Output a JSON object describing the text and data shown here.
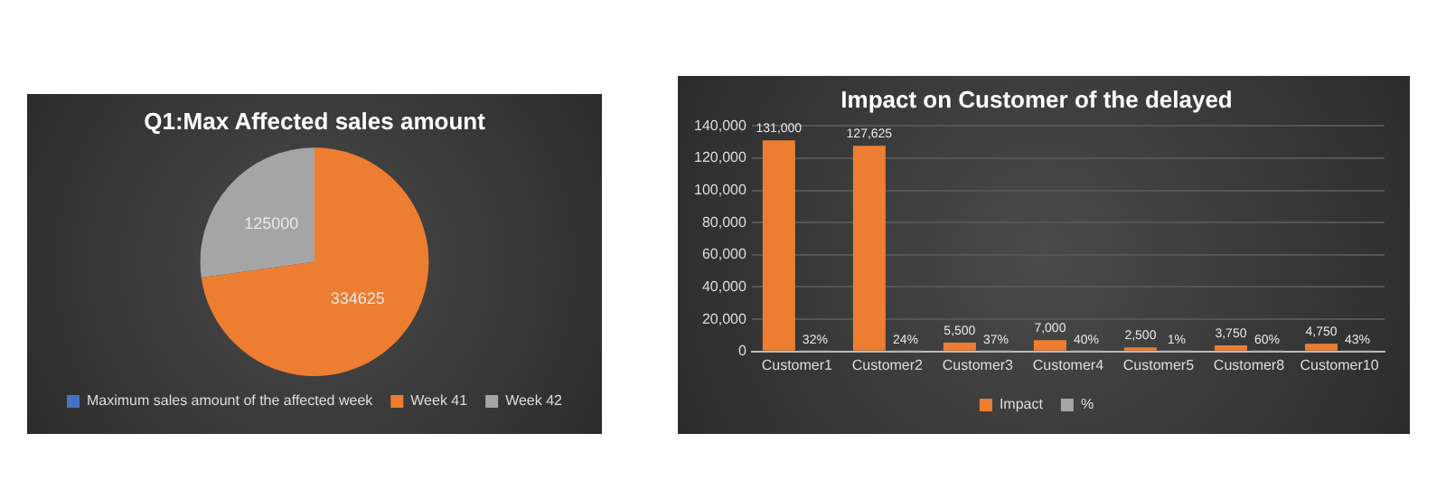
{
  "chart_data": [
    {
      "type": "pie",
      "title": "Q1:Max Affected sales amount",
      "categories": [
        "Maximum sales amount of the affected week",
        "Week 41",
        "Week 42"
      ],
      "values": [
        0,
        334625,
        125000
      ],
      "value_labels": [
        null,
        "334625",
        "125000"
      ],
      "colors": [
        "#4472c4",
        "#ed7d31",
        "#a5a5a5"
      ],
      "legend": "bottom"
    },
    {
      "type": "bar",
      "title": "Impact on Customer of the delayed",
      "categories": [
        "Customer1",
        "Customer2",
        "Customer3",
        "Customer4",
        "Customer5",
        "Customer8",
        "Customer10"
      ],
      "series": [
        {
          "name": "Impact",
          "color": "#ed7d31",
          "values": [
            131000,
            127625,
            5500,
            7000,
            2500,
            3750,
            4750
          ],
          "value_labels": [
            "131,000",
            "127,625",
            "5,500",
            "7,000",
            "2,500",
            "3,750",
            "4,750"
          ]
        },
        {
          "name": "%",
          "color": "#a5a5a5",
          "values": [
            0.32,
            0.24,
            0.37,
            0.4,
            0.01,
            0.6,
            0.43
          ],
          "value_labels": [
            "32%",
            "24%",
            "37%",
            "40%",
            "1%",
            "60%",
            "43%"
          ]
        }
      ],
      "ylim": [
        0,
        140000
      ],
      "yticks": [
        0,
        {
          "value": 20000,
          "label": "20,000"
        },
        {
          "value": 40000,
          "label": "40,000"
        },
        {
          "value": 60000,
          "label": "60,000"
        },
        {
          "value": 80000,
          "label": "80,000"
        },
        {
          "value": 100000,
          "label": "100,000"
        },
        {
          "value": 120000,
          "label": "120,000"
        },
        {
          "value": 140000,
          "label": "140,000"
        }
      ],
      "grid": "y",
      "legend": "bottom"
    }
  ]
}
